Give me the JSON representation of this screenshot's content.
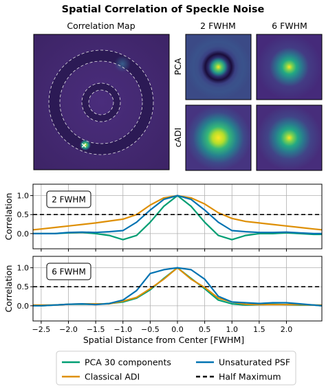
{
  "figure": {
    "title": "Spatial Correlation of Speckle Noise",
    "legend_placement": "bottom-center"
  },
  "images": {
    "map_title": "Correlation Map",
    "col_labels": [
      "2 FWHM",
      "6 FWHM"
    ],
    "row_labels": [
      "PCA",
      "cADI"
    ],
    "colormap": [
      "#440154",
      "#3b528b",
      "#21918c",
      "#5ec962",
      "#fde725"
    ],
    "map_marker": "×"
  },
  "chart_data": [
    {
      "type": "line",
      "annotation": "2 FWHM",
      "xlabel": "",
      "ylabel": "Correlation",
      "xlim": [
        -2.65,
        2.65
      ],
      "ylim": [
        -0.4,
        1.3
      ],
      "xticks": [
        -2.5,
        -2.0,
        -1.5,
        -1.0,
        -0.5,
        0.0,
        0.5,
        1.0,
        1.5,
        2.0
      ],
      "yticks": [
        0.0,
        0.5,
        1.0
      ],
      "grid": true,
      "hline": {
        "y": 0.5,
        "name": "Half Maximum"
      },
      "x": [
        -2.65,
        -2.5,
        -2.25,
        -2.0,
        -1.75,
        -1.5,
        -1.25,
        -1.0,
        -0.75,
        -0.5,
        -0.25,
        0.0,
        0.25,
        0.5,
        0.75,
        1.0,
        1.25,
        1.5,
        1.75,
        2.0,
        2.25,
        2.5,
        2.65
      ],
      "series": [
        {
          "name": "PCA 30 components",
          "color": "#009e73",
          "values": [
            0.0,
            0.0,
            0.0,
            0.02,
            0.03,
            0.0,
            -0.05,
            -0.16,
            -0.05,
            0.3,
            0.72,
            1.0,
            0.72,
            0.3,
            -0.05,
            -0.16,
            -0.05,
            0.0,
            0.0,
            0.02,
            0.0,
            -0.02,
            -0.02
          ]
        },
        {
          "name": "Classical ADI",
          "color": "#de8f05",
          "values": [
            0.1,
            0.12,
            0.16,
            0.2,
            0.24,
            0.28,
            0.33,
            0.38,
            0.5,
            0.75,
            0.94,
            1.0,
            0.94,
            0.78,
            0.55,
            0.4,
            0.32,
            0.28,
            0.24,
            0.2,
            0.16,
            0.12,
            0.1
          ]
        },
        {
          "name": "Unsaturated PSF",
          "color": "#0173b2",
          "values": [
            0.0,
            0.0,
            0.0,
            0.03,
            0.04,
            0.03,
            0.05,
            0.08,
            0.3,
            0.62,
            0.9,
            1.0,
            0.9,
            0.62,
            0.3,
            0.08,
            0.05,
            0.03,
            0.03,
            0.04,
            0.02,
            0.0,
            0.0
          ]
        }
      ]
    },
    {
      "type": "line",
      "annotation": "6 FWHM",
      "xlabel": "Spatial Distance from Center [FWHM]",
      "ylabel": "Correlation",
      "xlim": [
        -2.65,
        2.65
      ],
      "ylim": [
        -0.4,
        1.3
      ],
      "xticks": [
        -2.5,
        -2.0,
        -1.5,
        -1.0,
        -0.5,
        0.0,
        0.5,
        1.0,
        1.5,
        2.0
      ],
      "xticklabels": [
        "−2.5",
        "−2.0",
        "−1.5",
        "−1.0",
        "−0.5",
        "0.0",
        "0.5",
        "1.0",
        "1.5",
        "2.0"
      ],
      "yticks": [
        0.0,
        0.5,
        1.0
      ],
      "grid": true,
      "hline": {
        "y": 0.5,
        "name": "Half Maximum"
      },
      "x": [
        -2.65,
        -2.5,
        -2.25,
        -2.0,
        -1.75,
        -1.5,
        -1.25,
        -1.0,
        -0.75,
        -0.5,
        -0.25,
        0.0,
        0.25,
        0.5,
        0.75,
        1.0,
        1.25,
        1.5,
        1.75,
        2.0,
        2.25,
        2.5,
        2.65
      ],
      "series": [
        {
          "name": "PCA 30 components",
          "color": "#009e73",
          "values": [
            0.0,
            0.0,
            0.02,
            0.04,
            0.04,
            0.04,
            0.06,
            0.1,
            0.2,
            0.42,
            0.72,
            1.0,
            0.72,
            0.45,
            0.15,
            0.05,
            0.02,
            0.03,
            0.04,
            0.03,
            0.02,
            0.02,
            0.0
          ]
        },
        {
          "name": "Classical ADI",
          "color": "#de8f05",
          "values": [
            0.02,
            0.02,
            0.02,
            0.04,
            0.05,
            0.05,
            0.05,
            0.12,
            0.22,
            0.45,
            0.7,
            1.0,
            0.7,
            0.48,
            0.2,
            0.1,
            0.04,
            0.03,
            0.03,
            0.03,
            0.03,
            0.02,
            0.02
          ]
        },
        {
          "name": "Unsaturated PSF",
          "color": "#0173b2",
          "values": [
            0.0,
            0.0,
            0.02,
            0.04,
            0.05,
            0.03,
            0.06,
            0.15,
            0.4,
            0.85,
            0.95,
            1.0,
            0.95,
            0.7,
            0.25,
            0.1,
            0.08,
            0.06,
            0.08,
            0.08,
            0.05,
            0.02,
            0.0
          ]
        }
      ]
    }
  ]
}
